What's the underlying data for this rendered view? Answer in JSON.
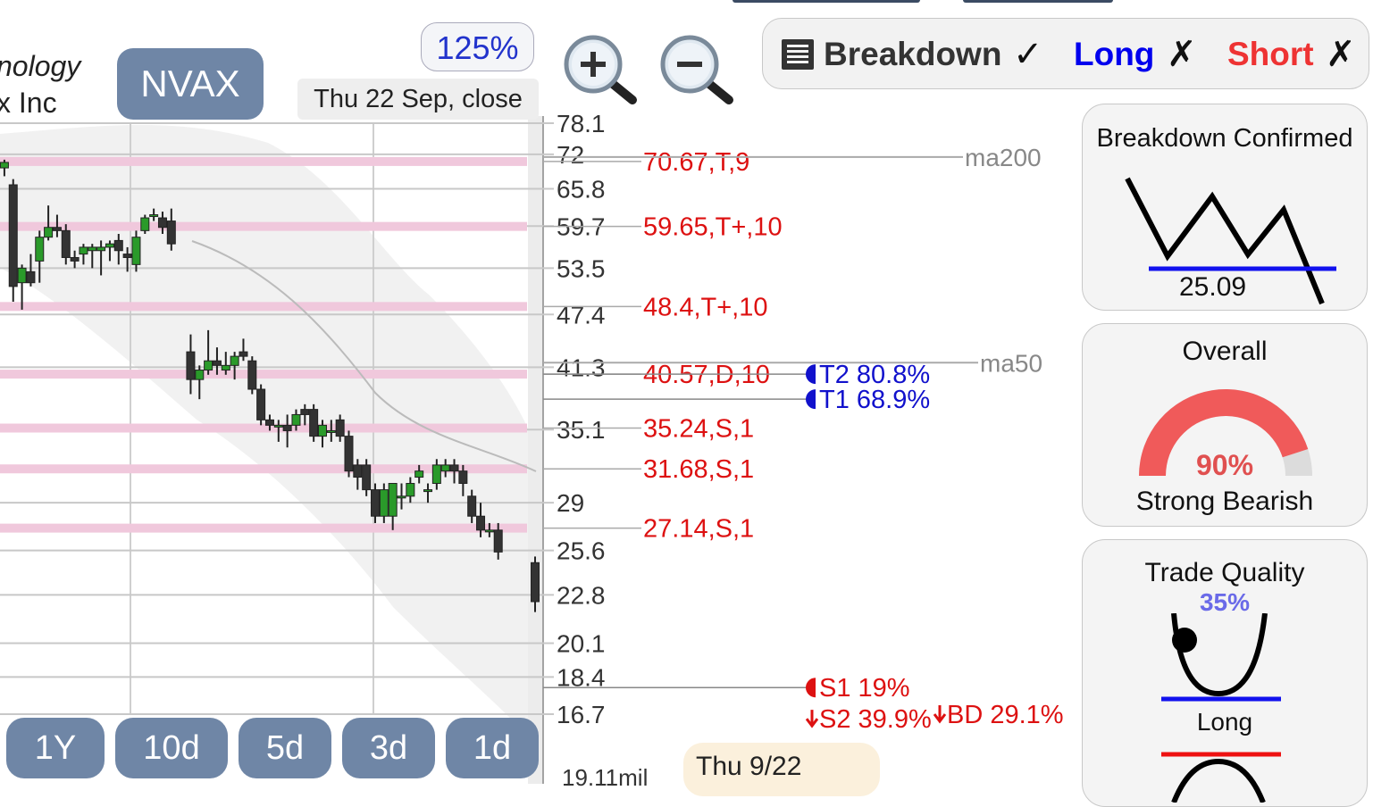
{
  "company": {
    "line1": "nology",
    "line2": "x Inc"
  },
  "ticker": "NVAX",
  "zoom_percent": "125%",
  "date_label": "Thu 22 Sep, close",
  "toolbar": {
    "zoom_in": "zoom-in-magnifier-icon",
    "zoom_out": "zoom-out-magnifier-icon"
  },
  "signals": {
    "breakdown_label": "Breakdown",
    "breakdown_mark": "✓",
    "long_label": "Long",
    "long_mark": "✗",
    "short_label": "Short",
    "short_mark": "✗",
    "breakdown_color": "#333333",
    "long_color": "#0000ee",
    "short_color": "#ee3333"
  },
  "panels": {
    "breakdown": {
      "title": "Breakdown Confirmed",
      "level": "25.09"
    },
    "overall": {
      "title": "Overall",
      "percent": "90%",
      "percent_value": 0.9,
      "label": "Strong Bearish",
      "gauge_color": "#f05a5a"
    },
    "trade_quality": {
      "title": "Trade Quality",
      "percent": "35%",
      "long_label": "Long"
    }
  },
  "range_buttons": [
    "1Y",
    "10d",
    "5d",
    "3d",
    "1d"
  ],
  "bottom_date": "Thu 9/22",
  "volume_label": "19.11mil",
  "chart_data": {
    "type": "candlestick",
    "y_axis_ticks": [
      "78.1",
      "72",
      "65.8",
      "59.7",
      "53.5",
      "47.4",
      "41.3",
      "35.1",
      "29",
      "25.6",
      "22.8",
      "20.1",
      "18.4",
      "16.7"
    ],
    "levels": [
      {
        "label": "70.67,T,9",
        "value": 70.67,
        "color": "#dd1111"
      },
      {
        "label": "59.65,T+,10",
        "value": 59.65,
        "color": "#dd1111"
      },
      {
        "label": "48.4,T+,10",
        "value": 48.4,
        "color": "#dd1111"
      },
      {
        "label": "40.57,D,10",
        "value": 40.57,
        "color": "#dd1111"
      },
      {
        "label": "35.24,S,1",
        "value": 35.24,
        "color": "#dd1111"
      },
      {
        "label": "31.68,S,1",
        "value": 31.68,
        "color": "#dd1111"
      },
      {
        "label": "27.14,S,1",
        "value": 27.14,
        "color": "#dd1111"
      }
    ],
    "moving_averages": [
      {
        "name": "ma200",
        "value": 71.5
      },
      {
        "name": "ma50",
        "value": 41.8
      }
    ],
    "targets": [
      {
        "label": "T2 80.8%",
        "value": 40.57,
        "color": "#1111cc"
      },
      {
        "label": "T1 68.9%",
        "value": 38.0,
        "color": "#1111cc"
      },
      {
        "label": "S1 19%",
        "value": 17.9,
        "color": "#dd1111"
      },
      {
        "label": "S2 39.9%",
        "value": 16.5,
        "color": "#dd1111"
      },
      {
        "label": "BD 29.1%",
        "value": 16.7,
        "color": "#dd1111"
      }
    ],
    "candles": [
      {
        "o": 69.5,
        "h": 71.0,
        "l": 68.0,
        "c": 70.5
      },
      {
        "o": 66.5,
        "h": 67.5,
        "l": 49.0,
        "c": 51.0
      },
      {
        "o": 51.5,
        "h": 54.0,
        "l": 48.0,
        "c": 53.5
      },
      {
        "o": 53.0,
        "h": 55.5,
        "l": 51.0,
        "c": 51.5
      },
      {
        "o": 54.5,
        "h": 59.0,
        "l": 51.5,
        "c": 58.0
      },
      {
        "o": 58.0,
        "h": 63.0,
        "l": 57.5,
        "c": 59.5
      },
      {
        "o": 59.5,
        "h": 61.5,
        "l": 58.0,
        "c": 59.0
      },
      {
        "o": 59.0,
        "h": 60.0,
        "l": 54.0,
        "c": 55.0
      },
      {
        "o": 55.0,
        "h": 56.0,
        "l": 53.5,
        "c": 54.5
      },
      {
        "o": 55.5,
        "h": 57.0,
        "l": 54.0,
        "c": 56.5
      },
      {
        "o": 56.0,
        "h": 57.0,
        "l": 53.5,
        "c": 56.5
      },
      {
        "o": 56.0,
        "h": 57.5,
        "l": 52.5,
        "c": 56.5
      },
      {
        "o": 56.5,
        "h": 57.5,
        "l": 54.5,
        "c": 57.0
      },
      {
        "o": 57.5,
        "h": 58.5,
        "l": 54.0,
        "c": 56.0
      },
      {
        "o": 55.5,
        "h": 56.5,
        "l": 53.0,
        "c": 55.0
      },
      {
        "o": 54.0,
        "h": 59.0,
        "l": 53.0,
        "c": 58.0
      },
      {
        "o": 59.0,
        "h": 61.5,
        "l": 58.5,
        "c": 61.0
      },
      {
        "o": 61.5,
        "h": 62.5,
        "l": 60.5,
        "c": 61.5
      },
      {
        "o": 61.0,
        "h": 62.0,
        "l": 58.5,
        "c": 59.5
      },
      {
        "o": 60.5,
        "h": 62.5,
        "l": 56.0,
        "c": 57.0
      },
      {
        "o": 43.0,
        "h": 45.0,
        "l": 38.5,
        "c": 40.0
      },
      {
        "o": 40.0,
        "h": 41.5,
        "l": 38.0,
        "c": 41.0
      },
      {
        "o": 41.0,
        "h": 45.5,
        "l": 40.5,
        "c": 42.0
      },
      {
        "o": 42.0,
        "h": 43.5,
        "l": 40.5,
        "c": 41.5
      },
      {
        "o": 41.0,
        "h": 43.0,
        "l": 40.5,
        "c": 41.5
      },
      {
        "o": 41.5,
        "h": 43.0,
        "l": 40.0,
        "c": 42.5
      },
      {
        "o": 43.0,
        "h": 44.5,
        "l": 42.0,
        "c": 42.5
      },
      {
        "o": 42.0,
        "h": 42.5,
        "l": 38.5,
        "c": 39.0
      },
      {
        "o": 39.0,
        "h": 39.5,
        "l": 35.5,
        "c": 36.0
      },
      {
        "o": 36.0,
        "h": 36.5,
        "l": 35.0,
        "c": 35.5
      },
      {
        "o": 35.5,
        "h": 36.0,
        "l": 34.0,
        "c": 35.5
      },
      {
        "o": 35.5,
        "h": 36.5,
        "l": 33.5,
        "c": 35.0
      },
      {
        "o": 35.5,
        "h": 37.0,
        "l": 35.0,
        "c": 36.5
      },
      {
        "o": 37.0,
        "h": 37.5,
        "l": 35.5,
        "c": 36.5
      },
      {
        "o": 37.0,
        "h": 37.5,
        "l": 34.0,
        "c": 34.5
      },
      {
        "o": 34.5,
        "h": 36.0,
        "l": 33.5,
        "c": 35.5
      },
      {
        "o": 35.0,
        "h": 36.0,
        "l": 34.0,
        "c": 35.0
      },
      {
        "o": 36.0,
        "h": 36.5,
        "l": 34.0,
        "c": 34.5
      },
      {
        "o": 34.5,
        "h": 35.0,
        "l": 31.0,
        "c": 31.5
      },
      {
        "o": 32.0,
        "h": 32.5,
        "l": 30.0,
        "c": 31.0
      },
      {
        "o": 32.0,
        "h": 32.5,
        "l": 29.5,
        "c": 30.0
      },
      {
        "o": 30.0,
        "h": 30.5,
        "l": 27.5,
        "c": 28.0
      },
      {
        "o": 28.0,
        "h": 30.5,
        "l": 27.5,
        "c": 30.0
      },
      {
        "o": 28.0,
        "h": 30.5,
        "l": 27.0,
        "c": 30.5
      },
      {
        "o": 29.5,
        "h": 30.5,
        "l": 28.5,
        "c": 29.5
      },
      {
        "o": 29.5,
        "h": 31.0,
        "l": 29.0,
        "c": 30.5
      },
      {
        "o": 31.0,
        "h": 32.0,
        "l": 30.5,
        "c": 31.5
      },
      {
        "o": 30.0,
        "h": 30.5,
        "l": 29.0,
        "c": 30.0
      },
      {
        "o": 30.5,
        "h": 32.5,
        "l": 30.0,
        "c": 32.0
      },
      {
        "o": 31.5,
        "h": 32.5,
        "l": 31.0,
        "c": 32.0
      },
      {
        "o": 32.0,
        "h": 32.5,
        "l": 30.5,
        "c": 31.5
      },
      {
        "o": 31.5,
        "h": 32.0,
        "l": 29.5,
        "c": 30.5
      },
      {
        "o": 29.5,
        "h": 30.0,
        "l": 27.5,
        "c": 28.0
      },
      {
        "o": 28.0,
        "h": 29.0,
        "l": 26.5,
        "c": 27.0
      },
      {
        "o": 27.0,
        "h": 27.5,
        "l": 26.5,
        "c": 27.0
      },
      {
        "o": 27.0,
        "h": 27.5,
        "l": 25.0,
        "c": 25.5
      },
      {
        "o": 24.8,
        "h": 25.2,
        "l": 21.8,
        "c": 22.4
      }
    ],
    "ylim": [
      16.0,
      78.1
    ],
    "y_scale": "log"
  }
}
